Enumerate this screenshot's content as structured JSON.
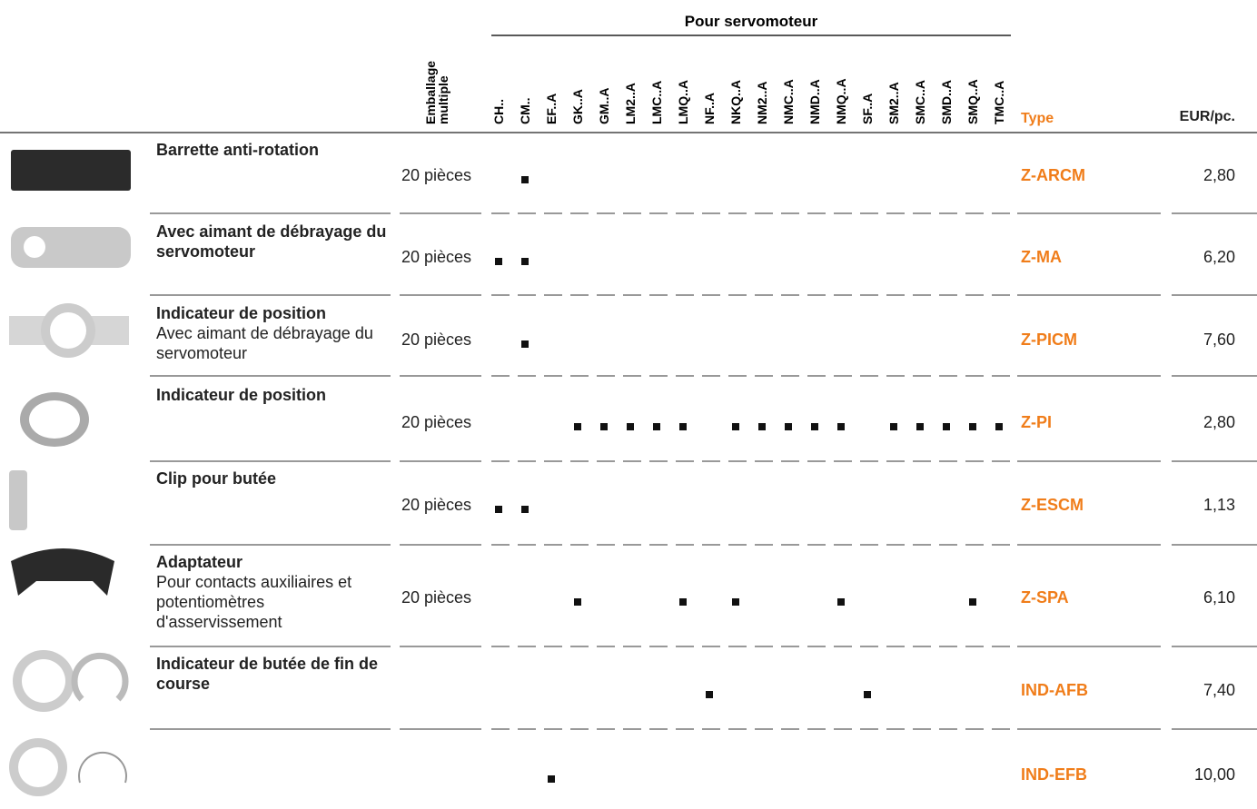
{
  "header": {
    "group": "Pour servomoteur",
    "packaging": [
      "Emballage",
      "multiple"
    ],
    "columns": [
      "CH..",
      "CM..",
      "EF..A",
      "GK..A",
      "GM..A",
      "LM2..A",
      "LMC..A",
      "LMQ..A",
      "NF..A",
      "NKQ..A",
      "NM2..A",
      "NMC..A",
      "NMD..A",
      "NMQ..A",
      "SF..A",
      "SM2..A",
      "SMC..A",
      "SMD..A",
      "SMQ..A",
      "TMC..A"
    ],
    "type": "Type",
    "price": "EUR/pc."
  },
  "rows": [
    {
      "title": "Barrette anti-rotation",
      "packaging": "20 pièces",
      "compatible": [
        false,
        true,
        false,
        false,
        false,
        false,
        false,
        false,
        false,
        false,
        false,
        false,
        false,
        false,
        false,
        false,
        false,
        false,
        false,
        false
      ],
      "type": "Z-ARCM",
      "price": "2,80"
    },
    {
      "title": "Avec aimant de débrayage du servomoteur",
      "packaging": "20 pièces",
      "compatible": [
        true,
        true,
        false,
        false,
        false,
        false,
        false,
        false,
        false,
        false,
        false,
        false,
        false,
        false,
        false,
        false,
        false,
        false,
        false,
        false
      ],
      "type": "Z-MA",
      "price": "6,20"
    },
    {
      "title": "Indicateur de position",
      "description": "Avec aimant de débrayage du servomoteur",
      "packaging": "20 pièces",
      "compatible": [
        false,
        true,
        false,
        false,
        false,
        false,
        false,
        false,
        false,
        false,
        false,
        false,
        false,
        false,
        false,
        false,
        false,
        false,
        false,
        false
      ],
      "type": "Z-PICM",
      "price": "7,60"
    },
    {
      "title": "Indicateur de position",
      "packaging": "20 pièces",
      "compatible": [
        false,
        false,
        false,
        true,
        true,
        true,
        true,
        true,
        false,
        true,
        true,
        true,
        true,
        true,
        false,
        true,
        true,
        true,
        true,
        true
      ],
      "type": "Z-PI",
      "price": "2,80"
    },
    {
      "title": "Clip pour butée",
      "packaging": "20 pièces",
      "compatible": [
        true,
        true,
        false,
        false,
        false,
        false,
        false,
        false,
        false,
        false,
        false,
        false,
        false,
        false,
        false,
        false,
        false,
        false,
        false,
        false
      ],
      "type": "Z-ESCM",
      "price": "1,13"
    },
    {
      "title": "Adaptateur",
      "description": "Pour contacts auxiliaires et potentiomètres d'asservissement",
      "packaging": "20 pièces",
      "compatible": [
        false,
        false,
        false,
        true,
        false,
        false,
        false,
        true,
        false,
        true,
        false,
        false,
        false,
        true,
        false,
        false,
        false,
        false,
        true,
        false
      ],
      "type": "Z-SPA",
      "price": "6,10"
    },
    {
      "title": "Indicateur de butée de fin de course",
      "compatible": [
        false,
        false,
        false,
        false,
        false,
        false,
        false,
        false,
        true,
        false,
        false,
        false,
        false,
        false,
        true,
        false,
        false,
        false,
        false,
        false
      ],
      "type": "IND-AFB",
      "price": "7,40"
    },
    {
      "compatible": [
        false,
        false,
        true,
        false,
        false,
        false,
        false,
        false,
        false,
        false,
        false,
        false,
        false,
        false,
        false,
        false,
        false,
        false,
        false,
        false
      ],
      "type": "IND-EFB",
      "price": "10,00"
    }
  ]
}
